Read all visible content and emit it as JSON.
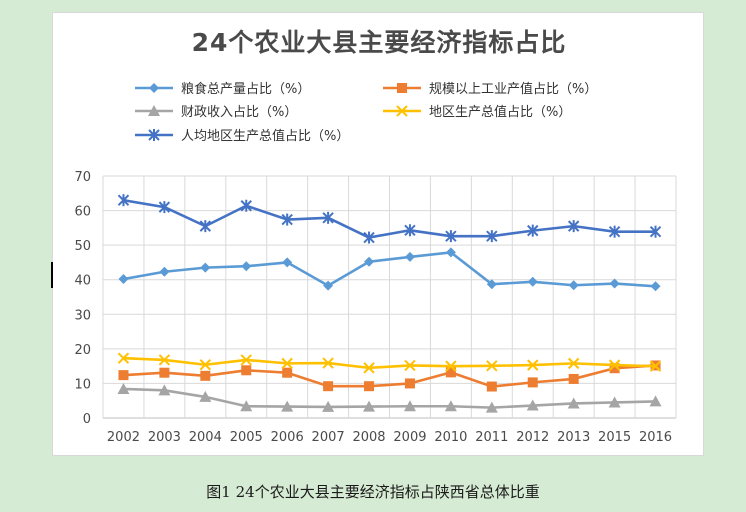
{
  "figure_caption": "图1 24个农业大县主要经济指标占陕西省总体比重",
  "chart_data": {
    "type": "line",
    "title": "24个农业大县主要经济指标占比",
    "xlabel": "",
    "ylabel": "",
    "ylim": [
      0,
      70
    ],
    "yticks": [
      0,
      10,
      20,
      30,
      40,
      50,
      60,
      70
    ],
    "grid": true,
    "legend_position": "top",
    "categories": [
      "2002",
      "2003",
      "2004",
      "2005",
      "2006",
      "2007",
      "2008",
      "2009",
      "2010",
      "2011",
      "2012",
      "2013",
      "2015",
      "2016"
    ],
    "series": [
      {
        "name": "粮食总产量占比（%）",
        "color": "#5b9bd5",
        "marker": "diamond",
        "values": [
          40.2,
          42.3,
          43.5,
          43.9,
          45.0,
          38.3,
          45.2,
          46.6,
          47.9,
          38.7,
          39.4,
          38.4,
          38.9,
          38.1
        ]
      },
      {
        "name": "规模以上工业产值占比（%）",
        "color": "#ed7d31",
        "marker": "square",
        "values": [
          12.4,
          13.1,
          12.2,
          13.8,
          13.1,
          9.2,
          9.2,
          10.0,
          13.2,
          9.1,
          10.3,
          11.3,
          14.4,
          15.2
        ]
      },
      {
        "name": "财政收入占比（%）",
        "color": "#a5a5a5",
        "marker": "triangle",
        "values": [
          8.4,
          8.0,
          6.1,
          3.4,
          3.3,
          3.2,
          3.3,
          3.4,
          3.4,
          3.0,
          3.6,
          4.2,
          4.5,
          4.8
        ]
      },
      {
        "name": "地区生产总值占比（%）",
        "color": "#ffc000",
        "marker": "x",
        "values": [
          17.3,
          16.8,
          15.4,
          16.8,
          15.8,
          15.9,
          14.5,
          15.2,
          15.0,
          15.1,
          15.3,
          15.8,
          15.3,
          15.0
        ]
      },
      {
        "name": "人均地区生产总值占比（%）",
        "color": "#4472c4",
        "marker": "star",
        "values": [
          63.0,
          61.0,
          55.5,
          61.4,
          57.4,
          57.9,
          52.2,
          54.3,
          52.6,
          52.6,
          54.2,
          55.5,
          53.9,
          53.9
        ]
      }
    ]
  }
}
